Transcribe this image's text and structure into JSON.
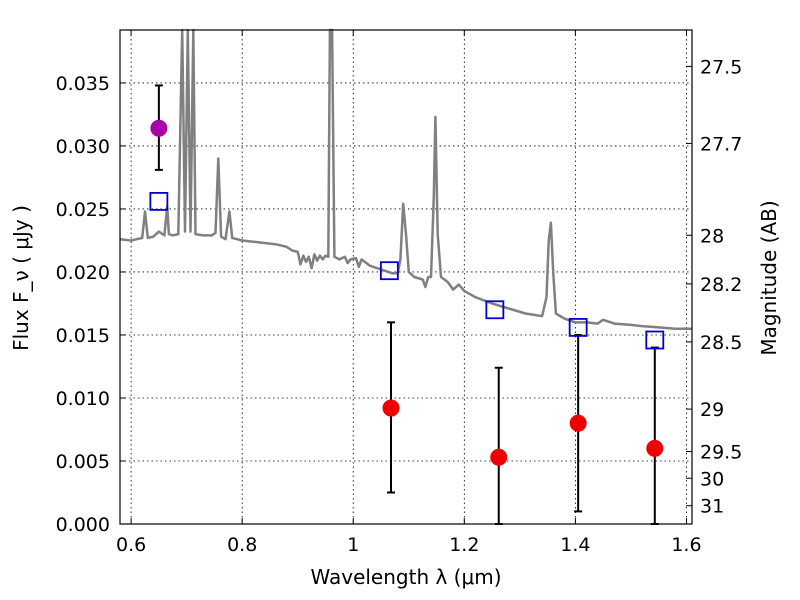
{
  "chart_data": {
    "type": "scatter",
    "xlabel": "Wavelength  λ (μm)",
    "ylabel": "Flux  F_ν  ( μJy )",
    "ylabel_right": "Magnitude (AB)",
    "xlim": [
      0.58,
      1.61
    ],
    "ylim": [
      0.0,
      0.0392
    ],
    "grid": true,
    "x_ticks": [
      {
        "value": 0.6,
        "label": "0.6"
      },
      {
        "value": 0.8,
        "label": "0.8"
      },
      {
        "value": 1.0,
        "label": "1"
      },
      {
        "value": 1.2,
        "label": "1.2"
      },
      {
        "value": 1.4,
        "label": "1.4"
      },
      {
        "value": 1.6,
        "label": "1.6"
      }
    ],
    "y_ticks": [
      {
        "value": 0.0,
        "label": "0.000"
      },
      {
        "value": 0.005,
        "label": "0.005"
      },
      {
        "value": 0.01,
        "label": "0.010"
      },
      {
        "value": 0.015,
        "label": "0.015"
      },
      {
        "value": 0.02,
        "label": "0.020"
      },
      {
        "value": 0.025,
        "label": "0.025"
      },
      {
        "value": 0.03,
        "label": "0.030"
      },
      {
        "value": 0.035,
        "label": "0.035"
      }
    ],
    "right_ticks": [
      {
        "flux": 0.03631,
        "label": "27.5"
      },
      {
        "flux": 0.0302,
        "label": "27.7"
      },
      {
        "flux": 0.02291,
        "label": "28"
      },
      {
        "flux": 0.01905,
        "label": "28.2"
      },
      {
        "flux": 0.01445,
        "label": "28.5"
      },
      {
        "flux": 0.00912,
        "label": "29"
      },
      {
        "flux": 0.00575,
        "label": "29.5"
      },
      {
        "flux": 0.00363,
        "label": "30"
      },
      {
        "flux": 0.00145,
        "label": "31"
      }
    ],
    "series": [
      {
        "kind": "line",
        "color": "#808080",
        "points": [
          [
            0.58,
            0.0226
          ],
          [
            0.6,
            0.0225
          ],
          [
            0.61,
            0.0226
          ],
          [
            0.62,
            0.0227
          ],
          [
            0.625,
            0.0248
          ],
          [
            0.63,
            0.0227
          ],
          [
            0.64,
            0.0228
          ],
          [
            0.65,
            0.0232
          ],
          [
            0.66,
            0.0229
          ],
          [
            0.665,
            0.0252
          ],
          [
            0.668,
            0.023
          ],
          [
            0.675,
            0.0229
          ],
          [
            0.685,
            0.023
          ],
          [
            0.692,
            0.0392
          ],
          [
            0.697,
            0.0232
          ],
          [
            0.702,
            0.0392
          ],
          [
            0.707,
            0.0232
          ],
          [
            0.712,
            0.0392
          ],
          [
            0.716,
            0.023
          ],
          [
            0.73,
            0.0229
          ],
          [
            0.745,
            0.0229
          ],
          [
            0.752,
            0.0231
          ],
          [
            0.757,
            0.029
          ],
          [
            0.762,
            0.0228
          ],
          [
            0.77,
            0.0226
          ],
          [
            0.777,
            0.0248
          ],
          [
            0.782,
            0.0227
          ],
          [
            0.8,
            0.0225
          ],
          [
            0.82,
            0.0224
          ],
          [
            0.84,
            0.0223
          ],
          [
            0.86,
            0.0222
          ],
          [
            0.88,
            0.022
          ],
          [
            0.89,
            0.0217
          ],
          [
            0.9,
            0.0216
          ],
          [
            0.905,
            0.0206
          ],
          [
            0.91,
            0.0213
          ],
          [
            0.915,
            0.0208
          ],
          [
            0.92,
            0.0212
          ],
          [
            0.925,
            0.0203
          ],
          [
            0.93,
            0.0214
          ],
          [
            0.935,
            0.0209
          ],
          [
            0.94,
            0.0213
          ],
          [
            0.945,
            0.021
          ],
          [
            0.95,
            0.0213
          ],
          [
            0.955,
            0.0212
          ],
          [
            0.958,
            0.0392
          ],
          [
            0.962,
            0.0392
          ],
          [
            0.966,
            0.0212
          ],
          [
            0.975,
            0.021
          ],
          [
            0.985,
            0.0212
          ],
          [
            0.99,
            0.0207
          ],
          [
            0.995,
            0.021
          ],
          [
            1.005,
            0.0211
          ],
          [
            1.01,
            0.0204
          ],
          [
            1.015,
            0.021
          ],
          [
            1.03,
            0.0205
          ],
          [
            1.05,
            0.0202
          ],
          [
            1.07,
            0.0199
          ],
          [
            1.08,
            0.0199
          ],
          [
            1.085,
            0.021
          ],
          [
            1.09,
            0.0254
          ],
          [
            1.095,
            0.023
          ],
          [
            1.1,
            0.02
          ],
          [
            1.11,
            0.0196
          ],
          [
            1.125,
            0.0194
          ],
          [
            1.13,
            0.0188
          ],
          [
            1.135,
            0.0196
          ],
          [
            1.14,
            0.0196
          ],
          [
            1.145,
            0.026
          ],
          [
            1.148,
            0.0323
          ],
          [
            1.152,
            0.023
          ],
          [
            1.158,
            0.0196
          ],
          [
            1.17,
            0.0192
          ],
          [
            1.18,
            0.0186
          ],
          [
            1.19,
            0.019
          ],
          [
            1.2,
            0.0185
          ],
          [
            1.22,
            0.018
          ],
          [
            1.25,
            0.0175
          ],
          [
            1.28,
            0.0171
          ],
          [
            1.31,
            0.0167
          ],
          [
            1.34,
            0.0165
          ],
          [
            1.348,
            0.018
          ],
          [
            1.352,
            0.0225
          ],
          [
            1.356,
            0.0239
          ],
          [
            1.36,
            0.02
          ],
          [
            1.365,
            0.0167
          ],
          [
            1.38,
            0.0163
          ],
          [
            1.4,
            0.016
          ],
          [
            1.42,
            0.016
          ],
          [
            1.44,
            0.0159
          ],
          [
            1.45,
            0.0162
          ],
          [
            1.47,
            0.0159
          ],
          [
            1.5,
            0.0158
          ],
          [
            1.52,
            0.0157
          ],
          [
            1.55,
            0.0156
          ],
          [
            1.58,
            0.0155
          ],
          [
            1.61,
            0.0155
          ]
        ]
      },
      {
        "kind": "open-square",
        "color": "#0000cc",
        "points": [
          [
            0.65,
            0.0256
          ],
          [
            1.065,
            0.0201
          ],
          [
            1.255,
            0.017
          ],
          [
            1.405,
            0.0156
          ],
          [
            1.543,
            0.0146
          ]
        ]
      },
      {
        "kind": "filled-circle",
        "color": "#ee0000",
        "points": [
          {
            "x": 1.068,
            "y": 0.0092,
            "lo": 0.0025,
            "hi": 0.016
          },
          {
            "x": 1.262,
            "y": 0.0053,
            "lo": 0.0,
            "hi": 0.0124
          },
          {
            "x": 1.405,
            "y": 0.008,
            "lo": 0.001,
            "hi": 0.015
          },
          {
            "x": 1.543,
            "y": 0.006,
            "lo": 0.0,
            "hi": 0.014
          }
        ]
      },
      {
        "kind": "filled-circle",
        "color": "#aa00aa",
        "points": [
          {
            "x": 0.65,
            "y": 0.0314,
            "lo": 0.0281,
            "hi": 0.0348
          }
        ]
      }
    ]
  }
}
